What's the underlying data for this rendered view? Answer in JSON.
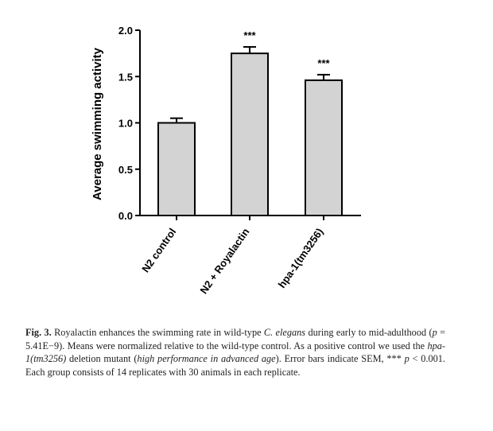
{
  "chart_data": {
    "type": "bar",
    "ylabel": "Average swimming activity",
    "ylim": [
      0,
      2.0
    ],
    "yticks": [
      "0.0",
      "0.5",
      "1.0",
      "1.5",
      "2.0"
    ],
    "ytick_values": [
      0,
      0.5,
      1.0,
      1.5,
      2.0
    ],
    "categories": [
      "N2 control",
      "N2 + Royalactin",
      "hpa-1(tm3256)"
    ],
    "values": [
      1.0,
      1.75,
      1.46
    ],
    "error": [
      0.05,
      0.07,
      0.06
    ],
    "significance": [
      "",
      "***",
      "***"
    ],
    "bar_color": "#d3d3d3",
    "grid": false,
    "legend": "none"
  },
  "caption": {
    "label": "Fig. 3.",
    "text_1": "Royalactin enhances the swimming rate in wild-type ",
    "species": "C. elegans",
    "text_2": " during early to mid-adulthood (",
    "p_sym": "p",
    "text_3": " = 5.41E−9). Means were normalized relative to the wild-type control. As a positive control we used the ",
    "gene": "hpa-1(tm3256)",
    "text_4": " deletion mutant (",
    "gene_meaning": "high performance in advanced age",
    "text_5": "). Error bars indicate SEM, *** ",
    "p_sym2": "p",
    "text_6": " < 0.001. Each group consists of 14 replicates with 30 animals in each replicate."
  }
}
